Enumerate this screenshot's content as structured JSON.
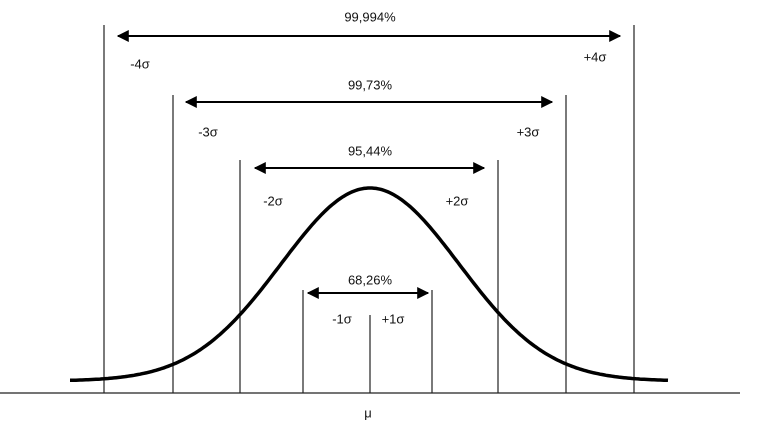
{
  "bands": [
    {
      "label": "99,994%",
      "lower": "-4σ",
      "upper": "+4σ"
    },
    {
      "label": "99,73%",
      "lower": "-3σ",
      "upper": "+3σ"
    },
    {
      "label": "95,44%",
      "lower": "-2σ",
      "upper": "+2σ"
    },
    {
      "label": "68,26%",
      "lower": "-1σ",
      "upper": "+1σ"
    }
  ],
  "mean_label": "μ"
}
